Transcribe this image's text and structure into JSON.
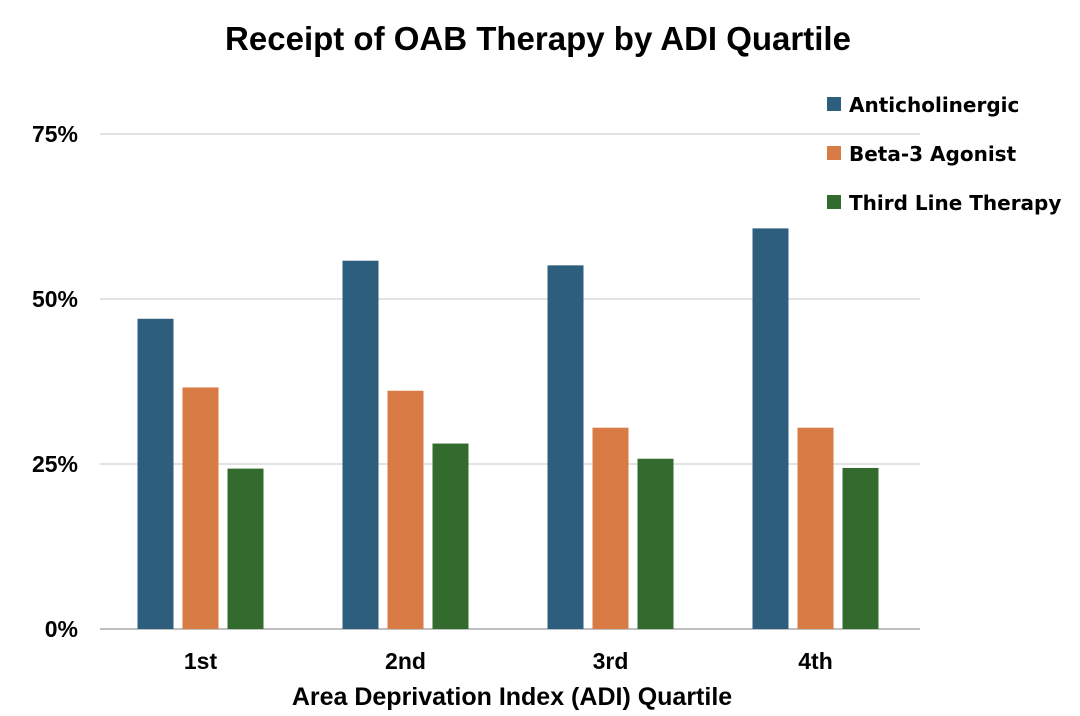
{
  "chart_data": {
    "type": "bar",
    "title": "Receipt of OAB Therapy by ADI Quartile",
    "xlabel": "Area Deprivation Index (ADI) Quartile",
    "ylabel": "",
    "categories": [
      "1st",
      "2nd",
      "3rd",
      "4th"
    ],
    "ylim": [
      0,
      75
    ],
    "yticks": [
      0,
      25,
      50,
      75
    ],
    "ytick_labels": [
      "0%",
      "25%",
      "50%",
      "75%"
    ],
    "grid": true,
    "legend_position": "top-right",
    "series": [
      {
        "name": "Anticholinergic",
        "color": "#2e5e7e",
        "values": [
          47.0,
          55.8,
          55.1,
          60.7
        ]
      },
      {
        "name": "Beta-3 Agonist",
        "color": "#d97b45",
        "values": [
          36.6,
          36.1,
          30.5,
          30.5
        ]
      },
      {
        "name": "Third Line Therapy",
        "color": "#336b2f",
        "values": [
          24.3,
          28.1,
          25.8,
          24.4
        ]
      }
    ]
  }
}
